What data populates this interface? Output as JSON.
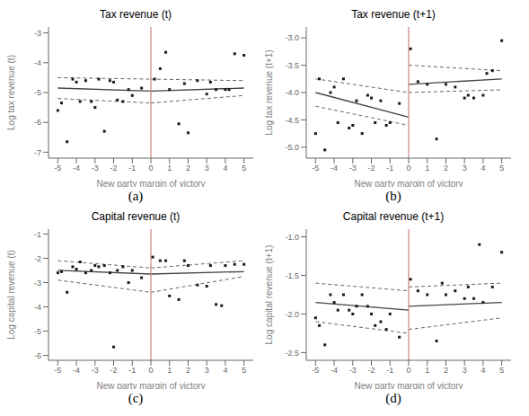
{
  "chart_data": [
    {
      "type": "scatter",
      "title": "Tax revenue (t)",
      "xlabel": "New party margin of victory",
      "ylabel": "Log tax revenue (t)",
      "annotation": "(a)",
      "xlim": [
        -5.5,
        5.5
      ],
      "xticks": [
        -5,
        -4,
        -3,
        -2,
        -1,
        0,
        1,
        2,
        3,
        4,
        5
      ],
      "ylim": [
        -7.2,
        -2.8
      ],
      "yticks": [
        -7,
        -6,
        -5,
        -4,
        -3
      ],
      "series": [
        {
          "type": "scatter",
          "marker": "square",
          "color": "#1a1a1a",
          "x": [
            -5.0,
            -4.8,
            -4.5,
            -4.2,
            -4.0,
            -3.8,
            -3.5,
            -3.2,
            -3.0,
            -2.8,
            -2.5,
            -2.2,
            -2.0,
            -1.8,
            -1.5,
            -1.2,
            -1.0,
            -0.5
          ],
          "values": [
            -5.6,
            -5.35,
            -6.65,
            -4.55,
            -4.65,
            -5.3,
            -4.6,
            -5.3,
            -5.5,
            -4.55,
            -6.3,
            -4.6,
            -4.65,
            -5.25,
            -5.3,
            -4.9,
            -5.1,
            -4.85
          ]
        },
        {
          "type": "scatter",
          "marker": "square",
          "color": "#1a1a1a",
          "x": [
            0.2,
            0.5,
            0.8,
            1.0,
            1.5,
            1.8,
            2.0,
            2.5,
            3.0,
            3.2,
            3.5,
            4.0,
            4.2,
            4.5,
            5.0
          ],
          "values": [
            -4.55,
            -4.2,
            -3.65,
            -4.9,
            -6.05,
            -4.7,
            -6.35,
            -4.6,
            -5.05,
            -4.65,
            -4.9,
            -4.9,
            -4.9,
            -3.7,
            -3.75
          ]
        },
        {
          "type": "line",
          "color": "#444444",
          "x": [
            -5,
            0
          ],
          "values": [
            -4.85,
            -4.95
          ]
        },
        {
          "type": "line",
          "line_style": "dashed",
          "color": "#666666",
          "x": [
            -5,
            0
          ],
          "values": [
            -4.5,
            -4.55
          ]
        },
        {
          "type": "line",
          "line_style": "dashed",
          "color": "#666666",
          "x": [
            -5,
            0
          ],
          "values": [
            -5.2,
            -5.35
          ]
        },
        {
          "type": "line",
          "color": "#444444",
          "x": [
            0,
            5
          ],
          "values": [
            -4.95,
            -4.85
          ]
        },
        {
          "type": "line",
          "line_style": "dashed",
          "color": "#666666",
          "x": [
            0,
            5
          ],
          "values": [
            -4.55,
            -4.6
          ]
        },
        {
          "type": "line",
          "line_style": "dashed",
          "color": "#666666",
          "x": [
            0,
            5
          ],
          "values": [
            -5.35,
            -5.1
          ]
        },
        {
          "type": "vline",
          "color": "#d08080",
          "x": [
            0
          ]
        }
      ]
    },
    {
      "type": "scatter",
      "title": "Tax revenue (t+1)",
      "xlabel": "New party margin of victory",
      "ylabel": "Log tax revenue (t+1)",
      "annotation": "(b)",
      "xlim": [
        -5.5,
        5.5
      ],
      "xticks": [
        -5,
        -4,
        -3,
        -2,
        -1,
        0,
        1,
        2,
        3,
        4,
        5
      ],
      "ylim": [
        -5.2,
        -2.8
      ],
      "yticks": [
        {
          "value": -5,
          "label": "-5.0"
        },
        -4.5,
        {
          "value": -4,
          "label": "-4.0"
        },
        -3.5,
        {
          "value": -3,
          "label": "-3.0"
        }
      ],
      "series": [
        {
          "type": "scatter",
          "marker": "square",
          "color": "#1a1a1a",
          "x": [
            -5.0,
            -4.8,
            -4.5,
            -4.2,
            -4.0,
            -3.8,
            -3.5,
            -3.2,
            -3.0,
            -2.8,
            -2.5,
            -2.2,
            -2.0,
            -1.8,
            -1.5,
            -1.2,
            -1.0,
            -0.5
          ],
          "values": [
            -4.75,
            -3.75,
            -5.05,
            -4.0,
            -3.9,
            -4.55,
            -3.75,
            -4.65,
            -4.6,
            -4.15,
            -4.75,
            -4.05,
            -4.1,
            -4.55,
            -4.15,
            -4.6,
            -4.55,
            -4.2
          ]
        },
        {
          "type": "scatter",
          "marker": "square",
          "color": "#1a1a1a",
          "x": [
            0.1,
            0.5,
            1.0,
            1.5,
            2.0,
            2.5,
            3.0,
            3.2,
            3.5,
            4.0,
            4.2,
            4.5,
            5.0
          ],
          "values": [
            -3.2,
            -3.8,
            -3.85,
            -4.85,
            -3.85,
            -3.9,
            -4.1,
            -4.05,
            -4.1,
            -4.05,
            -3.65,
            -3.6,
            -3.05
          ]
        },
        {
          "type": "line",
          "color": "#444444",
          "x": [
            -5,
            0
          ],
          "values": [
            -4.0,
            -4.45
          ]
        },
        {
          "type": "line",
          "line_style": "dashed",
          "color": "#666666",
          "x": [
            -5,
            0
          ],
          "values": [
            -3.75,
            -4.0
          ]
        },
        {
          "type": "line",
          "line_style": "dashed",
          "color": "#666666",
          "x": [
            -5,
            0
          ],
          "values": [
            -4.25,
            -4.6
          ]
        },
        {
          "type": "line",
          "color": "#444444",
          "x": [
            0,
            5
          ],
          "values": [
            -3.85,
            -3.75
          ]
        },
        {
          "type": "line",
          "line_style": "dashed",
          "color": "#666666",
          "x": [
            0,
            5
          ],
          "values": [
            -3.5,
            -3.6
          ]
        },
        {
          "type": "line",
          "line_style": "dashed",
          "color": "#666666",
          "x": [
            0,
            5
          ],
          "values": [
            -4.0,
            -3.95
          ]
        },
        {
          "type": "vline",
          "color": "#d08080",
          "x": [
            0
          ]
        }
      ]
    },
    {
      "type": "scatter",
      "title": "Capital revenue (t)",
      "xlabel": "New party margin of victory",
      "ylabel": "Log capital revenue (t)",
      "annotation": "(c)",
      "xlim": [
        -5.5,
        5.5
      ],
      "xticks": [
        -5,
        -4,
        -3,
        -2,
        -1,
        0,
        1,
        2,
        3,
        4,
        5
      ],
      "ylim": [
        -6.2,
        -0.8
      ],
      "yticks": [
        -6,
        -5,
        -4,
        -3,
        -2,
        -1
      ],
      "series": [
        {
          "type": "scatter",
          "marker": "square",
          "color": "#1a1a1a",
          "x": [
            -5.0,
            -4.8,
            -4.5,
            -4.2,
            -4.0,
            -3.8,
            -3.5,
            -3.2,
            -3.0,
            -2.8,
            -2.5,
            -2.2,
            -2.0,
            -1.8,
            -1.5,
            -1.2,
            -1.0,
            -0.5
          ],
          "values": [
            -2.6,
            -2.55,
            -3.4,
            -2.35,
            -2.45,
            -2.15,
            -2.6,
            -2.5,
            -2.3,
            -2.35,
            -2.3,
            -2.6,
            -5.65,
            -2.5,
            -2.35,
            -3.0,
            -2.5,
            -2.8
          ]
        },
        {
          "type": "scatter",
          "marker": "square",
          "color": "#1a1a1a",
          "x": [
            0.1,
            0.5,
            0.8,
            1.0,
            1.5,
            1.8,
            2.0,
            2.5,
            3.0,
            3.2,
            3.5,
            3.8,
            4.0,
            4.5,
            5.0
          ],
          "values": [
            -1.95,
            -2.1,
            -2.1,
            -3.55,
            -3.7,
            -2.1,
            -2.3,
            -3.1,
            -3.15,
            -2.3,
            -3.9,
            -3.95,
            -2.3,
            -2.25,
            -2.25
          ]
        },
        {
          "type": "line",
          "color": "#444444",
          "x": [
            -5,
            0
          ],
          "values": [
            -2.5,
            -2.65
          ]
        },
        {
          "type": "line",
          "line_style": "dashed",
          "color": "#666666",
          "x": [
            -5,
            0
          ],
          "values": [
            -2.1,
            -2.4
          ]
        },
        {
          "type": "line",
          "line_style": "dashed",
          "color": "#666666",
          "x": [
            -5,
            0
          ],
          "values": [
            -2.9,
            -3.4
          ]
        },
        {
          "type": "line",
          "color": "#444444",
          "x": [
            0,
            5
          ],
          "values": [
            -2.65,
            -2.55
          ]
        },
        {
          "type": "line",
          "line_style": "dashed",
          "color": "#666666",
          "x": [
            0,
            5
          ],
          "values": [
            -2.4,
            -2.1
          ]
        },
        {
          "type": "line",
          "line_style": "dashed",
          "color": "#666666",
          "x": [
            0,
            5
          ],
          "values": [
            -3.4,
            -2.75
          ]
        },
        {
          "type": "vline",
          "color": "#d08080",
          "x": [
            0
          ]
        }
      ]
    },
    {
      "type": "scatter",
      "title": "Capital revenue (t+1)",
      "xlabel": "New party margin of victory",
      "ylabel": "Log capital revenue (t+1)",
      "annotation": "(d)",
      "xlim": [
        -5.5,
        5.5
      ],
      "xticks": [
        -5,
        -4,
        -3,
        -2,
        -1,
        0,
        1,
        2,
        3,
        4,
        5
      ],
      "ylim": [
        -2.6,
        -0.9
      ],
      "yticks": [
        -2.5,
        {
          "value": -2.0,
          "label": "-2.0"
        },
        -1.5,
        {
          "value": -1.0,
          "label": "-1.0"
        }
      ],
      "series": [
        {
          "type": "scatter",
          "marker": "square",
          "color": "#1a1a1a",
          "x": [
            -5.0,
            -4.8,
            -4.5,
            -4.2,
            -4.0,
            -3.8,
            -3.5,
            -3.2,
            -3.0,
            -2.8,
            -2.5,
            -2.2,
            -2.0,
            -1.8,
            -1.5,
            -1.2,
            -1.0,
            -0.5
          ],
          "values": [
            -2.05,
            -2.15,
            -2.4,
            -1.75,
            -1.85,
            -1.95,
            -1.75,
            -1.95,
            -2.0,
            -1.9,
            -1.75,
            -1.9,
            -2.0,
            -2.15,
            -2.1,
            -2.2,
            -2.0,
            -2.3
          ]
        },
        {
          "type": "scatter",
          "marker": "square",
          "color": "#1a1a1a",
          "x": [
            0.1,
            0.5,
            1.0,
            1.5,
            1.8,
            2.0,
            2.5,
            3.0,
            3.2,
            3.5,
            3.8,
            4.0,
            4.5,
            5.0
          ],
          "values": [
            -1.55,
            -1.7,
            -1.75,
            -2.35,
            -1.6,
            -1.75,
            -1.7,
            -1.8,
            -1.65,
            -1.8,
            -1.1,
            -1.85,
            -1.65,
            -1.2
          ]
        },
        {
          "type": "line",
          "color": "#444444",
          "x": [
            -5,
            0
          ],
          "values": [
            -1.85,
            -1.95
          ]
        },
        {
          "type": "line",
          "line_style": "dashed",
          "color": "#666666",
          "x": [
            -5,
            0
          ],
          "values": [
            -1.6,
            -1.7
          ]
        },
        {
          "type": "line",
          "line_style": "dashed",
          "color": "#666666",
          "x": [
            -5,
            0
          ],
          "values": [
            -2.1,
            -2.25
          ]
        },
        {
          "type": "line",
          "color": "#444444",
          "x": [
            0,
            5
          ],
          "values": [
            -1.9,
            -1.85
          ]
        },
        {
          "type": "line",
          "line_style": "dashed",
          "color": "#666666",
          "x": [
            0,
            5
          ],
          "values": [
            -1.65,
            -1.6
          ]
        },
        {
          "type": "line",
          "line_style": "dashed",
          "color": "#666666",
          "x": [
            0,
            5
          ],
          "values": [
            -2.2,
            -2.05
          ]
        },
        {
          "type": "vline",
          "color": "#d08080",
          "x": [
            0
          ]
        }
      ]
    }
  ]
}
